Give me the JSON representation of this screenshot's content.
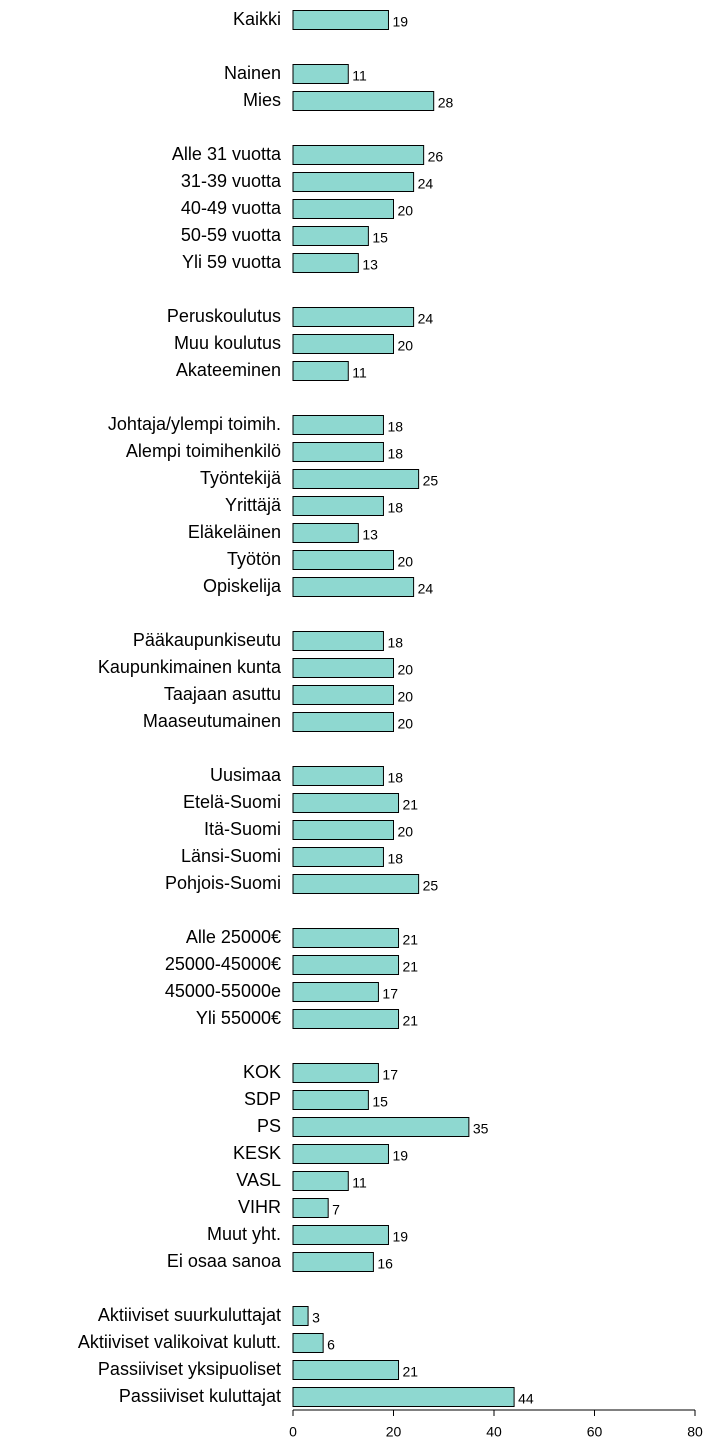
{
  "chart_data": {
    "type": "barh",
    "categories": [
      "Kaikki",
      null,
      "Nainen",
      "Mies",
      null,
      "Alle 31 vuotta",
      "31-39 vuotta",
      "40-49 vuotta",
      "50-59 vuotta",
      "Yli 59 vuotta",
      null,
      "Peruskoulutus",
      "Muu koulutus",
      "Akateeminen",
      null,
      "Johtaja/ylempi toimih.",
      "Alempi toimihenkilö",
      "Työntekijä",
      "Yrittäjä",
      "Eläkeläinen",
      "Työtön",
      "Opiskelija",
      null,
      "Pääkaupunkiseutu",
      "Kaupunkimainen kunta",
      "Taajaan asuttu",
      "Maaseutumainen",
      null,
      "Uusimaa",
      "Etelä-Suomi",
      "Itä-Suomi",
      "Länsi-Suomi",
      "Pohjois-Suomi",
      null,
      "Alle 25000€",
      "25000-45000€",
      "45000-55000e",
      "Yli 55000€",
      null,
      "KOK",
      "SDP",
      "PS",
      "KESK",
      "VASL",
      "VIHR",
      "Muut yht.",
      "Ei osaa sanoa",
      null,
      "Aktiiviset suurkuluttajat",
      "Aktiiviset valikoivat kulutt.",
      "Passiiviset yksipuoliset",
      "Passiiviset kuluttajat"
    ],
    "values": [
      19,
      null,
      11,
      28,
      null,
      26,
      24,
      20,
      15,
      13,
      null,
      24,
      20,
      11,
      null,
      18,
      18,
      25,
      18,
      13,
      20,
      24,
      null,
      18,
      20,
      20,
      20,
      null,
      18,
      21,
      20,
      18,
      25,
      null,
      21,
      21,
      17,
      21,
      null,
      17,
      15,
      35,
      19,
      11,
      7,
      19,
      16,
      null,
      3,
      6,
      21,
      44
    ],
    "color": "#8ed8d0",
    "xlim": [
      0,
      80
    ],
    "xticks": [
      0,
      20,
      40,
      60,
      80
    ],
    "grid": false
  }
}
